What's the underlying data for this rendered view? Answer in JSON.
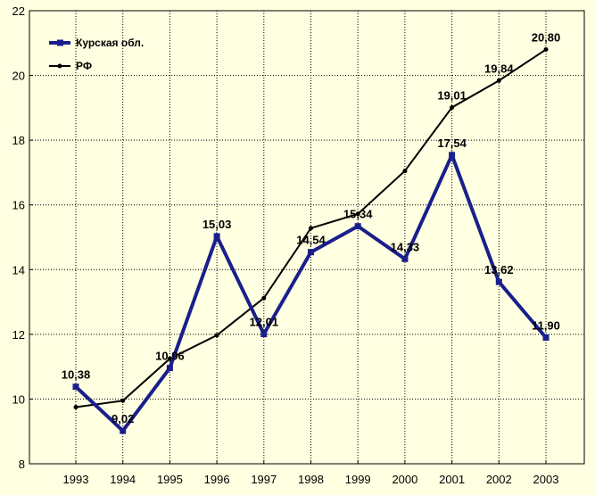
{
  "chart_data": {
    "type": "line",
    "title": "",
    "xlabel": "",
    "ylabel": "",
    "categories": [
      "1993",
      "1994",
      "1995",
      "1996",
      "1997",
      "1998",
      "1999",
      "2000",
      "2001",
      "2002",
      "2003"
    ],
    "ylim": [
      8,
      22
    ],
    "yticks": [
      "8",
      "10",
      "12",
      "14",
      "16",
      "18",
      "20",
      "22"
    ],
    "grid": true,
    "legend_position": "top-left",
    "series": [
      {
        "name": "Курская обл.",
        "color": "#1a1f8c",
        "values": [
          10.38,
          9.02,
          10.96,
          15.03,
          12.01,
          14.54,
          15.34,
          14.33,
          17.54,
          13.62,
          11.9
        ],
        "labels": [
          "10,38",
          "9,02",
          "10,96",
          "15,03",
          "12,01",
          "14,54",
          "15,34",
          "14,33",
          "17,54",
          "13,62",
          "11,90"
        ]
      },
      {
        "name": "РФ",
        "color": "#000000",
        "values": [
          9.75,
          9.95,
          11.25,
          11.97,
          13.12,
          15.28,
          15.72,
          17.05,
          19.01,
          19.84,
          20.8
        ],
        "labels": [
          "",
          "",
          "",
          "",
          "",
          "",
          "",
          "",
          "19,01",
          "19,84",
          "20,80"
        ]
      }
    ]
  }
}
